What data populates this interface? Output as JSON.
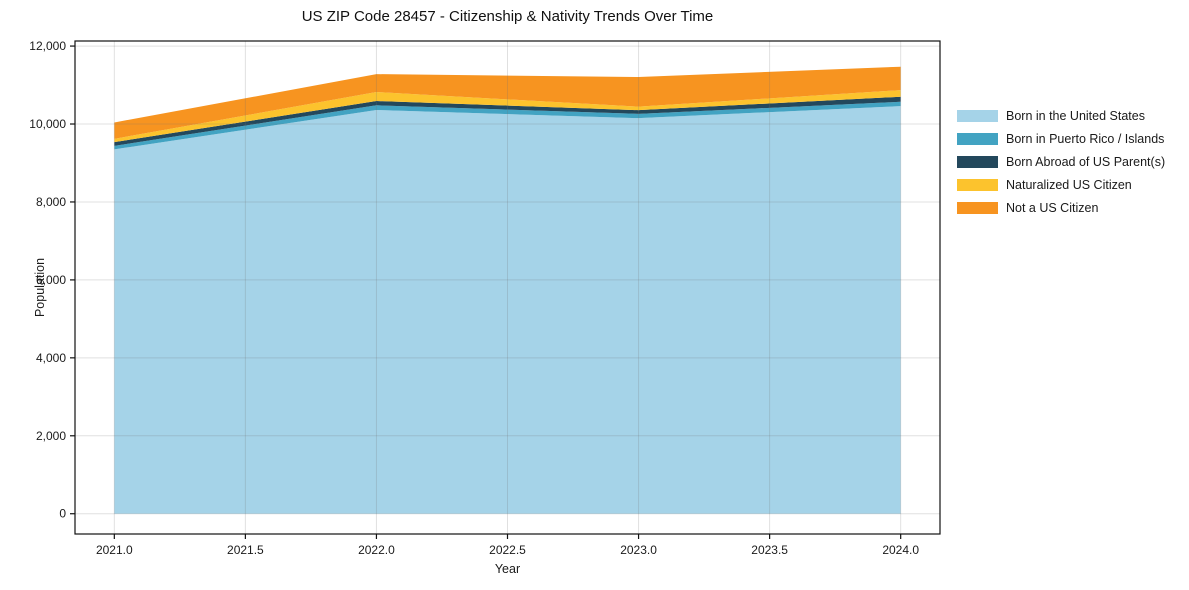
{
  "title": "US ZIP Code 28457 - Citizenship & Nativity Trends Over Time",
  "chart_data": {
    "type": "area",
    "stacked": true,
    "title": "US ZIP Code 28457 - Citizenship & Nativity Trends Over Time",
    "xlabel": "Year",
    "ylabel": "Population",
    "x": [
      2021,
      2022,
      2023,
      2024
    ],
    "series": [
      {
        "name": "Born in the United States",
        "color": "#a5d3e8",
        "values": [
          9350,
          10360,
          10150,
          10460
        ]
      },
      {
        "name": "Born in Puerto Rico / Islands",
        "color": "#42a3c2",
        "values": [
          90,
          120,
          110,
          110
        ]
      },
      {
        "name": "Born Abroad of US Parent(s)",
        "color": "#23485c",
        "values": [
          95,
          110,
          95,
          130
        ]
      },
      {
        "name": "Naturalized US Citizen",
        "color": "#fcc32d",
        "values": [
          85,
          230,
          90,
          170
        ]
      },
      {
        "name": "Not a US Citizen",
        "color": "#f79420",
        "values": [
          420,
          460,
          760,
          600
        ]
      }
    ],
    "totals": [
      10040,
      11280,
      11205,
      11470
    ],
    "xlim": [
      2020.85,
      2024.15
    ],
    "ylim": [
      -520,
      12130
    ],
    "xticks": {
      "values": [
        2021.0,
        2021.5,
        2022.0,
        2022.5,
        2023.0,
        2023.5,
        2024.0
      ],
      "labels": [
        "2021.0",
        "2021.5",
        "2022.0",
        "2022.5",
        "2023.0",
        "2023.5",
        "2024.0"
      ]
    },
    "yticks": {
      "values": [
        0,
        2000,
        4000,
        6000,
        8000,
        10000,
        12000
      ],
      "labels": [
        "0",
        "2,000",
        "4,000",
        "6,000",
        "8,000",
        "10,000",
        "12,000"
      ]
    },
    "grid": true,
    "legend_position": "outside-right"
  }
}
